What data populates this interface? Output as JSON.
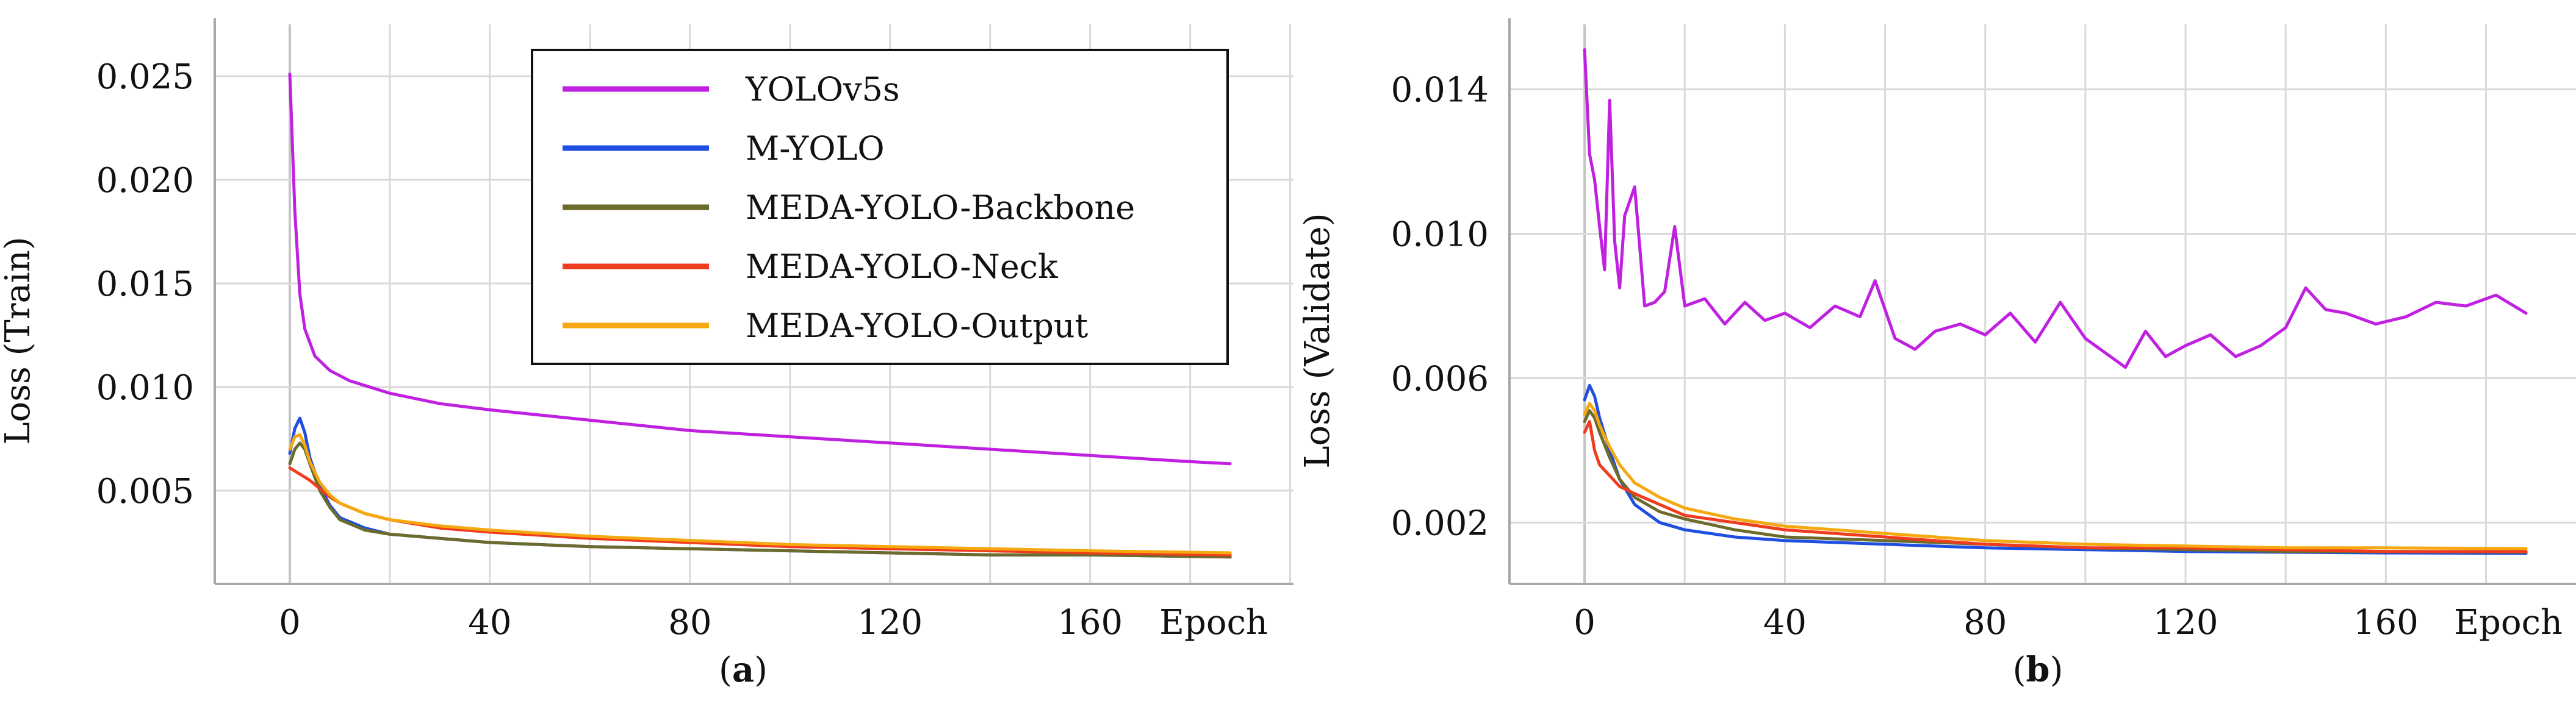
{
  "chart_data": [
    {
      "type": "line",
      "panel_label": "a",
      "title": "",
      "xlabel": "Epoch",
      "ylabel": "Loss (Train)",
      "xlim": [
        -15,
        197
      ],
      "ylim": [
        0.0005,
        0.0275
      ],
      "x_ticks": [
        0,
        40,
        80,
        120,
        160
      ],
      "y_ticks": [
        0.005,
        0.01,
        0.015,
        0.02,
        0.025
      ],
      "y_tick_labels": [
        "0.005",
        "0.010",
        "0.015",
        "0.020",
        "0.025"
      ],
      "grid": true,
      "legend": {
        "position": "top-right",
        "entries": [
          "YOLOv5s",
          "M-YOLO",
          "MEDA-YOLO-Backbone",
          "MEDA-YOLO-Neck",
          "MEDA-YOLO-Output"
        ]
      },
      "series": [
        {
          "name": "YOLOv5s",
          "color": "#c020e0",
          "x": [
            0,
            1,
            2,
            3,
            5,
            8,
            12,
            20,
            30,
            40,
            60,
            80,
            100,
            120,
            140,
            160,
            180,
            188
          ],
          "values": [
            0.0251,
            0.0185,
            0.0145,
            0.0128,
            0.0115,
            0.0108,
            0.0103,
            0.0097,
            0.0092,
            0.0089,
            0.0084,
            0.0079,
            0.0076,
            0.0073,
            0.007,
            0.0067,
            0.0064,
            0.0063
          ]
        },
        {
          "name": "M-YOLO",
          "color": "#1f4fe0",
          "x": [
            0,
            1,
            2,
            3,
            4,
            6,
            8,
            10,
            15,
            20,
            30,
            40,
            60,
            80,
            100,
            120,
            140,
            160,
            188
          ],
          "values": [
            0.0068,
            0.008,
            0.0085,
            0.0078,
            0.0066,
            0.0052,
            0.0043,
            0.0037,
            0.0032,
            0.0029,
            0.0027,
            0.0025,
            0.0023,
            0.0022,
            0.0021,
            0.002,
            0.0019,
            0.0019,
            0.0018
          ]
        },
        {
          "name": "MEDA-YOLO-Backbone",
          "color": "#6b6b2b",
          "x": [
            0,
            1,
            2,
            3,
            4,
            6,
            8,
            10,
            15,
            20,
            30,
            40,
            60,
            80,
            100,
            120,
            140,
            160,
            188
          ],
          "values": [
            0.0063,
            0.007,
            0.0073,
            0.007,
            0.0063,
            0.005,
            0.0042,
            0.0036,
            0.0031,
            0.0029,
            0.0027,
            0.0025,
            0.0023,
            0.0022,
            0.0021,
            0.002,
            0.0019,
            0.0019,
            0.0018
          ]
        },
        {
          "name": "MEDA-YOLO-Neck",
          "color": "#f03c1e",
          "x": [
            0,
            2,
            4,
            6,
            8,
            10,
            15,
            20,
            30,
            40,
            60,
            80,
            100,
            120,
            140,
            160,
            188
          ],
          "values": [
            0.0061,
            0.0058,
            0.0055,
            0.0051,
            0.0047,
            0.0044,
            0.0039,
            0.0036,
            0.0032,
            0.003,
            0.0027,
            0.0025,
            0.0023,
            0.0022,
            0.0021,
            0.002,
            0.0019
          ]
        },
        {
          "name": "MEDA-YOLO-Output",
          "color": "#f5a80f",
          "x": [
            0,
            1,
            2,
            3,
            4,
            6,
            8,
            10,
            15,
            20,
            30,
            40,
            60,
            80,
            100,
            120,
            140,
            160,
            188
          ],
          "values": [
            0.007,
            0.0076,
            0.0077,
            0.0072,
            0.0064,
            0.0054,
            0.0048,
            0.0044,
            0.0039,
            0.0036,
            0.0033,
            0.0031,
            0.0028,
            0.0026,
            0.0024,
            0.0023,
            0.0022,
            0.0021,
            0.002
          ]
        }
      ]
    },
    {
      "type": "line",
      "panel_label": "b",
      "title": "",
      "xlabel": "Epoch",
      "ylabel": "Loss (Validate)",
      "xlim": [
        -15,
        197
      ],
      "ylim": [
        0.0003,
        0.0158
      ],
      "x_ticks": [
        0,
        40,
        80,
        120,
        160
      ],
      "y_ticks": [
        0.002,
        0.006,
        0.01,
        0.014
      ],
      "y_tick_labels": [
        "0.002",
        "0.006",
        "0.010",
        "0.014"
      ],
      "grid": true,
      "series": [
        {
          "name": "YOLOv5s",
          "color": "#c020e0",
          "x": [
            0,
            1,
            2,
            3,
            4,
            5,
            6,
            7,
            8,
            10,
            12,
            14,
            16,
            18,
            20,
            24,
            28,
            32,
            36,
            40,
            45,
            50,
            55,
            58,
            62,
            66,
            70,
            75,
            80,
            85,
            90,
            95,
            100,
            105,
            108,
            112,
            116,
            120,
            125,
            130,
            135,
            140,
            144,
            148,
            152,
            158,
            164,
            170,
            176,
            182,
            188
          ],
          "values": [
            0.0151,
            0.0122,
            0.0115,
            0.0102,
            0.009,
            0.0137,
            0.0098,
            0.0085,
            0.0105,
            0.0113,
            0.008,
            0.0081,
            0.0084,
            0.0102,
            0.008,
            0.0082,
            0.0075,
            0.0081,
            0.0076,
            0.0078,
            0.0074,
            0.008,
            0.0077,
            0.0087,
            0.0071,
            0.0068,
            0.0073,
            0.0075,
            0.0072,
            0.0078,
            0.007,
            0.0081,
            0.0071,
            0.0066,
            0.0063,
            0.0073,
            0.0066,
            0.0069,
            0.0072,
            0.0066,
            0.0069,
            0.0074,
            0.0085,
            0.0079,
            0.0078,
            0.0075,
            0.0077,
            0.0081,
            0.008,
            0.0083,
            0.0078
          ]
        },
        {
          "name": "M-YOLO",
          "color": "#1f4fe0",
          "x": [
            0,
            1,
            2,
            3,
            5,
            7,
            10,
            15,
            20,
            30,
            40,
            60,
            80,
            100,
            120,
            140,
            160,
            188
          ],
          "values": [
            0.0054,
            0.0058,
            0.0055,
            0.0049,
            0.004,
            0.0032,
            0.0025,
            0.002,
            0.0018,
            0.0016,
            0.0015,
            0.0014,
            0.0013,
            0.00125,
            0.0012,
            0.00118,
            0.00116,
            0.00115
          ]
        },
        {
          "name": "MEDA-YOLO-Backbone",
          "color": "#6b6b2b",
          "x": [
            0,
            1,
            2,
            3,
            5,
            7,
            10,
            15,
            20,
            30,
            40,
            60,
            80,
            100,
            120,
            140,
            160,
            188
          ],
          "values": [
            0.0048,
            0.0051,
            0.0049,
            0.0045,
            0.0038,
            0.0032,
            0.0027,
            0.0023,
            0.0021,
            0.0018,
            0.0016,
            0.0015,
            0.0014,
            0.0013,
            0.00125,
            0.0012,
            0.0012,
            0.00118
          ]
        },
        {
          "name": "MEDA-YOLO-Neck",
          "color": "#f03c1e",
          "x": [
            0,
            1,
            2,
            3,
            5,
            7,
            10,
            15,
            20,
            30,
            40,
            60,
            80,
            100,
            120,
            140,
            160,
            188
          ],
          "values": [
            0.0045,
            0.0048,
            0.004,
            0.0036,
            0.0033,
            0.003,
            0.0028,
            0.0025,
            0.0022,
            0.002,
            0.0018,
            0.0016,
            0.0014,
            0.0013,
            0.0013,
            0.00125,
            0.0012,
            0.0012
          ]
        },
        {
          "name": "MEDA-YOLO-Output",
          "color": "#f5a80f",
          "x": [
            0,
            1,
            2,
            3,
            5,
            7,
            10,
            15,
            20,
            30,
            40,
            60,
            80,
            100,
            120,
            140,
            160,
            188
          ],
          "values": [
            0.005,
            0.0053,
            0.0051,
            0.0047,
            0.0041,
            0.0036,
            0.0031,
            0.0027,
            0.0024,
            0.0021,
            0.0019,
            0.0017,
            0.0015,
            0.0014,
            0.00135,
            0.0013,
            0.0013,
            0.00128
          ]
        }
      ]
    }
  ]
}
